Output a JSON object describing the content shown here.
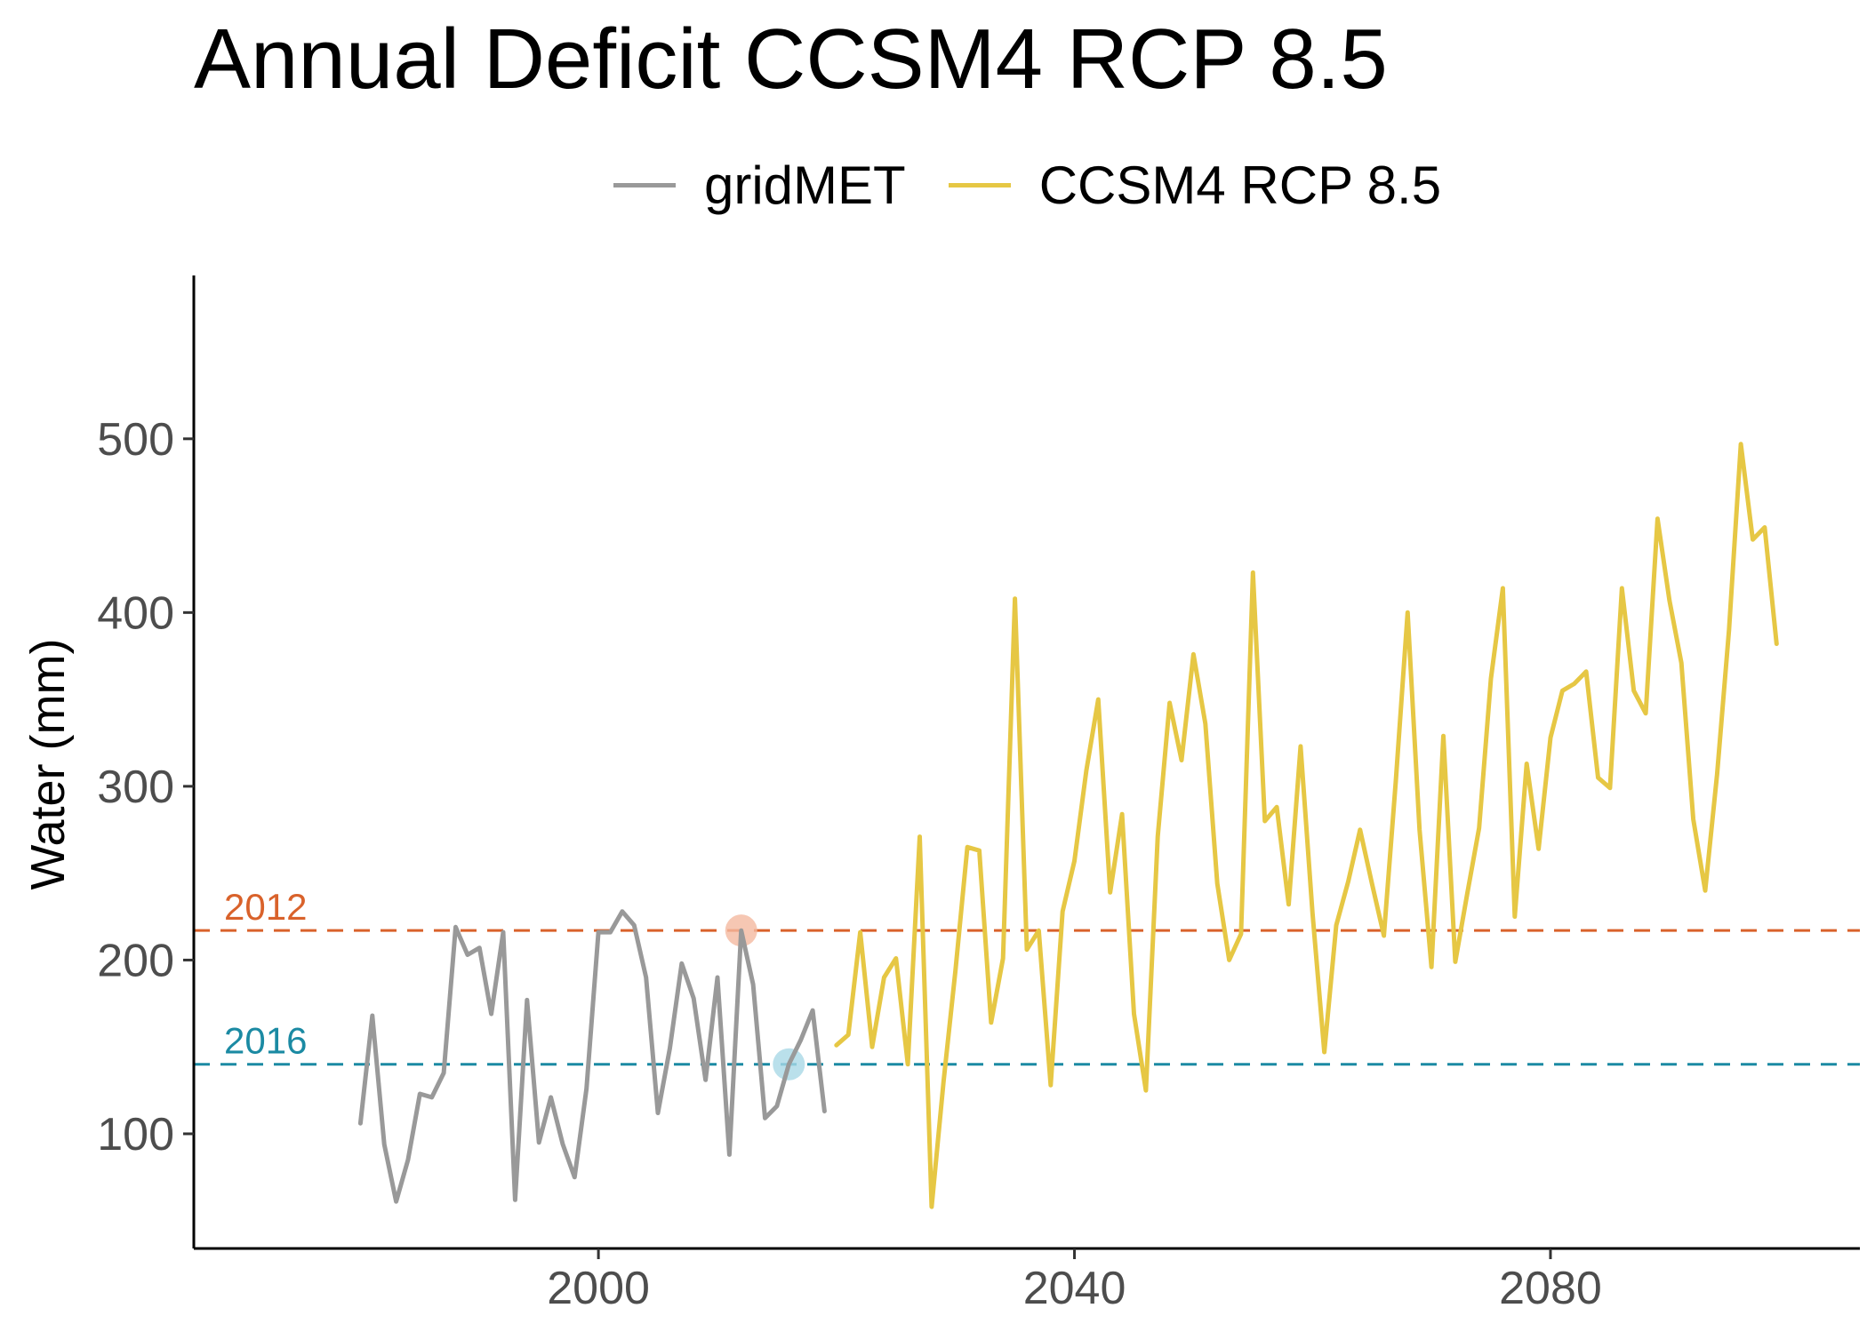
{
  "chart_data": {
    "type": "line",
    "title": "Annual Deficit CCSM4 RCP 8.5",
    "xlabel": "",
    "ylabel": "Water (mm)",
    "xlim": [
      1966,
      2106
    ],
    "ylim": [
      34,
      594
    ],
    "x_ticks": [
      2000,
      2040,
      2080
    ],
    "y_ticks": [
      100,
      200,
      300,
      400,
      500
    ],
    "grid": false,
    "legend_position": "top",
    "series": [
      {
        "name": "gridMET",
        "color": "#999999",
        "x": [
          1980,
          1981,
          1982,
          1983,
          1984,
          1985,
          1986,
          1987,
          1988,
          1989,
          1990,
          1991,
          1992,
          1993,
          1994,
          1995,
          1996,
          1997,
          1998,
          1999,
          2000,
          2001,
          2002,
          2003,
          2004,
          2005,
          2006,
          2007,
          2008,
          2009,
          2010,
          2011,
          2012,
          2013,
          2014,
          2015,
          2016,
          2017,
          2018,
          2019
        ],
        "y": [
          106,
          168,
          94,
          61,
          85,
          123,
          121,
          135,
          219,
          203,
          207,
          169,
          216,
          62,
          177,
          95,
          121,
          94,
          75,
          126,
          216,
          216,
          228,
          220,
          190,
          112,
          149,
          198,
          178,
          131,
          190,
          88,
          217,
          186,
          109,
          116,
          140,
          154,
          171,
          113
        ]
      },
      {
        "name": "CCSM4 RCP 8.5",
        "color": "#e6c744",
        "x": [
          2020,
          2021,
          2022,
          2023,
          2024,
          2025,
          2026,
          2027,
          2028,
          2029,
          2030,
          2031,
          2032,
          2033,
          2034,
          2035,
          2036,
          2037,
          2038,
          2039,
          2040,
          2041,
          2042,
          2043,
          2044,
          2045,
          2046,
          2047,
          2048,
          2049,
          2050,
          2051,
          2052,
          2053,
          2054,
          2055,
          2056,
          2057,
          2058,
          2059,
          2060,
          2061,
          2062,
          2063,
          2064,
          2065,
          2066,
          2067,
          2068,
          2069,
          2070,
          2071,
          2072,
          2073,
          2074,
          2075,
          2076,
          2077,
          2078,
          2079,
          2080,
          2081,
          2082,
          2083,
          2084,
          2085,
          2086,
          2087,
          2088,
          2089,
          2090,
          2091,
          2092,
          2093,
          2094,
          2095,
          2096,
          2097,
          2098,
          2099
        ],
        "y": [
          151,
          157,
          216,
          150,
          190,
          201,
          140,
          271,
          58,
          130,
          194,
          265,
          263,
          164,
          201,
          408,
          206,
          217,
          128,
          228,
          257,
          309,
          350,
          239,
          284,
          169,
          125,
          271,
          348,
          315,
          376,
          336,
          244,
          200,
          215,
          423,
          280,
          288,
          232,
          323,
          227,
          147,
          220,
          245,
          275,
          244,
          214,
          303,
          400,
          275,
          196,
          329,
          199,
          238,
          276,
          362,
          414,
          225,
          313,
          264,
          328,
          355,
          359,
          366,
          305,
          299,
          414,
          355,
          342,
          454,
          407,
          371,
          281,
          240,
          307,
          390,
          497,
          442,
          449,
          382
        ]
      }
    ],
    "reference_lines": [
      {
        "label": "2012",
        "y": 217,
        "color": "#d9622b"
      },
      {
        "label": "2016",
        "y": 140,
        "color": "#1b8aa3"
      }
    ],
    "highlight_points": [
      {
        "x": 2012,
        "y": 217,
        "color": "#f4b9a0"
      },
      {
        "x": 2016,
        "y": 140,
        "color": "#a9d8e6"
      }
    ]
  }
}
